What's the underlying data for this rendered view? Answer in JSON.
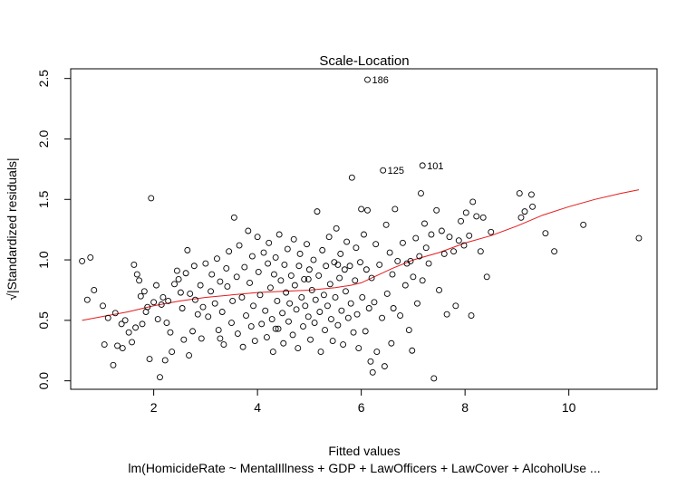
{
  "chart_data": {
    "type": "scatter",
    "title": "Scale-Location",
    "xlabel": "Fitted values",
    "ylabel": "√|Standardized residuals|",
    "subtitle": "lm(HomicideRate ~ MentalIllness + GDP + LawOfficers + LawCover + AlcoholUse ...",
    "xlim": [
      0.4,
      11.7
    ],
    "ylim": [
      -0.07,
      2.58
    ],
    "x_ticks": [
      2,
      4,
      6,
      8,
      10
    ],
    "y_ticks": [
      0.0,
      0.5,
      1.0,
      1.5,
      2.0,
      2.5
    ],
    "x_tick_labels": [
      "2",
      "4",
      "6",
      "8",
      "10"
    ],
    "y_tick_labels": [
      "0.0",
      "0.5",
      "1.0",
      "1.5",
      "2.0",
      "2.5"
    ],
    "grid": false,
    "point_color": "#000000",
    "smooth_color": "#e41a1c",
    "labeled_points": [
      {
        "label": "186",
        "x": 6.12,
        "y": 2.49
      },
      {
        "label": "125",
        "x": 6.42,
        "y": 1.74
      },
      {
        "label": "101",
        "x": 7.18,
        "y": 1.78
      }
    ],
    "points": [
      [
        0.62,
        0.99
      ],
      [
        0.72,
        0.67
      ],
      [
        0.78,
        1.02
      ],
      [
        0.85,
        0.75
      ],
      [
        1.02,
        0.62
      ],
      [
        1.05,
        0.3
      ],
      [
        1.12,
        0.52
      ],
      [
        1.22,
        0.13
      ],
      [
        1.26,
        0.56
      ],
      [
        1.3,
        0.29
      ],
      [
        1.38,
        0.47
      ],
      [
        1.4,
        0.27
      ],
      [
        1.45,
        0.5
      ],
      [
        1.52,
        0.4
      ],
      [
        1.58,
        0.32
      ],
      [
        1.62,
        0.96
      ],
      [
        1.65,
        0.44
      ],
      [
        1.68,
        0.88
      ],
      [
        1.72,
        0.83
      ],
      [
        1.75,
        0.7
      ],
      [
        1.78,
        0.47
      ],
      [
        1.82,
        0.74
      ],
      [
        1.85,
        0.57
      ],
      [
        1.88,
        0.61
      ],
      [
        1.92,
        0.18
      ],
      [
        1.95,
        1.51
      ],
      [
        2.0,
        0.65
      ],
      [
        2.05,
        0.79
      ],
      [
        2.08,
        0.51
      ],
      [
        2.12,
        0.03
      ],
      [
        2.15,
        0.63
      ],
      [
        2.18,
        0.69
      ],
      [
        2.22,
        0.17
      ],
      [
        2.25,
        0.48
      ],
      [
        2.28,
        0.66
      ],
      [
        2.32,
        0.4
      ],
      [
        2.35,
        0.24
      ],
      [
        2.4,
        0.8
      ],
      [
        2.45,
        0.91
      ],
      [
        2.48,
        0.84
      ],
      [
        2.52,
        0.73
      ],
      [
        2.55,
        0.6
      ],
      [
        2.58,
        0.34
      ],
      [
        2.62,
        0.89
      ],
      [
        2.65,
        1.08
      ],
      [
        2.68,
        0.21
      ],
      [
        2.7,
        0.72
      ],
      [
        2.75,
        0.41
      ],
      [
        2.78,
        0.95
      ],
      [
        2.8,
        0.67
      ],
      [
        2.85,
        0.55
      ],
      [
        2.9,
        0.79
      ],
      [
        2.92,
        0.35
      ],
      [
        2.95,
        0.61
      ],
      [
        3.0,
        0.97
      ],
      [
        3.05,
        0.53
      ],
      [
        3.1,
        0.74
      ],
      [
        3.12,
        0.88
      ],
      [
        3.18,
        0.64
      ],
      [
        3.22,
        1.01
      ],
      [
        3.25,
        0.42
      ],
      [
        3.28,
        0.82
      ],
      [
        3.32,
        0.57
      ],
      [
        3.35,
        0.3
      ],
      [
        3.4,
        0.93
      ],
      [
        3.42,
        0.78
      ],
      [
        3.45,
        1.07
      ],
      [
        3.5,
        0.48
      ],
      [
        3.52,
        0.66
      ],
      [
        3.55,
        1.35
      ],
      [
        3.6,
        0.86
      ],
      [
        3.62,
        0.39
      ],
      [
        3.65,
        1.12
      ],
      [
        3.7,
        0.69
      ],
      [
        3.72,
        0.28
      ],
      [
        3.75,
        0.94
      ],
      [
        3.78,
        0.54
      ],
      [
        3.82,
        1.24
      ],
      [
        3.85,
        0.81
      ],
      [
        3.88,
        0.45
      ],
      [
        3.9,
        1.03
      ],
      [
        3.92,
        0.62
      ],
      [
        3.95,
        0.33
      ],
      [
        4.0,
        1.19
      ],
      [
        4.02,
        0.9
      ],
      [
        4.05,
        0.71
      ],
      [
        4.08,
        0.47
      ],
      [
        4.12,
        1.06
      ],
      [
        4.15,
        0.58
      ],
      [
        4.18,
        0.36
      ],
      [
        4.2,
        0.97
      ],
      [
        4.22,
        1.14
      ],
      [
        4.25,
        0.77
      ],
      [
        4.28,
        0.51
      ],
      [
        4.3,
        0.24
      ],
      [
        4.32,
        0.88
      ],
      [
        4.35,
        1.02
      ],
      [
        4.38,
        0.66
      ],
      [
        4.4,
        0.43
      ],
      [
        4.42,
        1.21
      ],
      [
        4.45,
        0.83
      ],
      [
        4.48,
        0.56
      ],
      [
        4.5,
        0.31
      ],
      [
        4.52,
        0.96
      ],
      [
        4.55,
        0.73
      ],
      [
        4.58,
        1.09
      ],
      [
        4.6,
        0.49
      ],
      [
        4.62,
        0.64
      ],
      [
        4.65,
        0.87
      ],
      [
        4.68,
        0.38
      ],
      [
        4.7,
        1.17
      ],
      [
        4.72,
        0.79
      ],
      [
        4.75,
        0.59
      ],
      [
        4.78,
        0.27
      ],
      [
        4.8,
        0.95
      ],
      [
        4.82,
        1.05
      ],
      [
        4.85,
        0.69
      ],
      [
        4.88,
        0.45
      ],
      [
        4.9,
        0.84
      ],
      [
        4.92,
        0.62
      ],
      [
        4.95,
        1.13
      ],
      [
        4.98,
        0.53
      ],
      [
        5.0,
        0.92
      ],
      [
        5.02,
        0.34
      ],
      [
        5.05,
        0.75
      ],
      [
        5.08,
        1.0
      ],
      [
        5.1,
        0.48
      ],
      [
        5.12,
        0.67
      ],
      [
        5.15,
        1.4
      ],
      [
        5.18,
        0.87
      ],
      [
        5.2,
        0.57
      ],
      [
        5.22,
        0.24
      ],
      [
        5.25,
        1.08
      ],
      [
        5.28,
        0.71
      ],
      [
        5.3,
        0.42
      ],
      [
        5.32,
        0.95
      ],
      [
        5.35,
        0.62
      ],
      [
        5.38,
        1.19
      ],
      [
        5.4,
        0.8
      ],
      [
        5.42,
        0.51
      ],
      [
        5.45,
        0.33
      ],
      [
        5.48,
        0.98
      ],
      [
        5.5,
        0.69
      ],
      [
        5.52,
        1.26
      ],
      [
        5.55,
        0.46
      ],
      [
        5.58,
        0.85
      ],
      [
        5.6,
        1.05
      ],
      [
        5.62,
        0.58
      ],
      [
        5.65,
        0.3
      ],
      [
        5.68,
        0.92
      ],
      [
        5.7,
        0.74
      ],
      [
        5.72,
        1.15
      ],
      [
        5.75,
        0.52
      ],
      [
        5.78,
        0.95
      ],
      [
        5.8,
        0.64
      ],
      [
        5.82,
        1.68
      ],
      [
        5.85,
        0.4
      ],
      [
        5.88,
        0.83
      ],
      [
        5.9,
        1.1
      ],
      [
        5.92,
        0.55
      ],
      [
        5.95,
        0.27
      ],
      [
        5.98,
        0.98
      ],
      [
        6.0,
        1.42
      ],
      [
        6.02,
        0.69
      ],
      [
        6.05,
        1.21
      ],
      [
        6.08,
        0.41
      ],
      [
        6.1,
        0.92
      ],
      [
        6.12,
        1.41
      ],
      [
        6.15,
        0.6
      ],
      [
        6.18,
        0.16
      ],
      [
        6.2,
        0.85
      ],
      [
        6.22,
        0.07
      ],
      [
        6.25,
        0.65
      ],
      [
        6.28,
        1.13
      ],
      [
        6.3,
        0.24
      ],
      [
        6.35,
        0.96
      ],
      [
        6.4,
        0.52
      ],
      [
        6.45,
        0.12
      ],
      [
        6.48,
        1.29
      ],
      [
        6.5,
        0.72
      ],
      [
        6.55,
        1.06
      ],
      [
        6.58,
        0.31
      ],
      [
        6.6,
        0.88
      ],
      [
        6.62,
        0.6
      ],
      [
        6.65,
        1.42
      ],
      [
        6.7,
        0.99
      ],
      [
        6.75,
        0.54
      ],
      [
        6.8,
        1.14
      ],
      [
        6.85,
        0.79
      ],
      [
        6.88,
        0.97
      ],
      [
        6.92,
        0.42
      ],
      [
        6.95,
        0.99
      ],
      [
        6.98,
        0.25
      ],
      [
        7.0,
        0.86
      ],
      [
        7.05,
        1.18
      ],
      [
        7.08,
        0.64
      ],
      [
        7.12,
        1.03
      ],
      [
        7.15,
        1.55
      ],
      [
        7.18,
        0.83
      ],
      [
        7.22,
        1.3
      ],
      [
        7.25,
        1.1
      ],
      [
        7.3,
        0.97
      ],
      [
        7.35,
        1.21
      ],
      [
        7.4,
        0.02
      ],
      [
        7.45,
        1.41
      ],
      [
        7.5,
        0.75
      ],
      [
        7.55,
        1.24
      ],
      [
        7.6,
        1.05
      ],
      [
        7.65,
        0.55
      ],
      [
        7.7,
        1.19
      ],
      [
        7.78,
        1.07
      ],
      [
        7.82,
        0.62
      ],
      [
        7.88,
        1.16
      ],
      [
        7.92,
        1.32
      ],
      [
        7.98,
        1.12
      ],
      [
        8.02,
        1.39
      ],
      [
        8.08,
        1.2
      ],
      [
        8.12,
        0.54
      ],
      [
        8.15,
        1.48
      ],
      [
        8.22,
        1.36
      ],
      [
        8.3,
        1.07
      ],
      [
        8.35,
        1.35
      ],
      [
        8.42,
        0.86
      ],
      [
        8.5,
        1.23
      ],
      [
        9.05,
        1.55
      ],
      [
        9.08,
        1.35
      ],
      [
        9.15,
        1.4
      ],
      [
        9.28,
        1.54
      ],
      [
        9.3,
        1.44
      ],
      [
        9.55,
        1.22
      ],
      [
        9.72,
        1.07
      ],
      [
        10.28,
        1.29
      ],
      [
        11.35,
        1.18
      ],
      [
        6.12,
        2.49
      ],
      [
        6.42,
        1.74
      ],
      [
        7.18,
        1.78
      ],
      [
        3.28,
        0.35
      ],
      [
        4.98,
        0.84
      ],
      [
        5.55,
        0.96
      ],
      [
        4.35,
        0.43
      ]
    ],
    "smooth": [
      [
        0.62,
        0.5
      ],
      [
        1.0,
        0.53
      ],
      [
        1.5,
        0.57
      ],
      [
        2.0,
        0.62
      ],
      [
        2.5,
        0.66
      ],
      [
        3.0,
        0.69
      ],
      [
        3.5,
        0.71
      ],
      [
        4.0,
        0.73
      ],
      [
        4.5,
        0.74
      ],
      [
        5.0,
        0.75
      ],
      [
        5.5,
        0.77
      ],
      [
        5.8,
        0.79
      ],
      [
        6.0,
        0.81
      ],
      [
        6.3,
        0.87
      ],
      [
        6.6,
        0.93
      ],
      [
        7.0,
        1.0
      ],
      [
        7.5,
        1.06
      ],
      [
        8.0,
        1.14
      ],
      [
        8.5,
        1.2
      ],
      [
        9.0,
        1.28
      ],
      [
        9.5,
        1.37
      ],
      [
        10.0,
        1.44
      ],
      [
        10.5,
        1.5
      ],
      [
        11.0,
        1.55
      ],
      [
        11.35,
        1.58
      ]
    ]
  }
}
